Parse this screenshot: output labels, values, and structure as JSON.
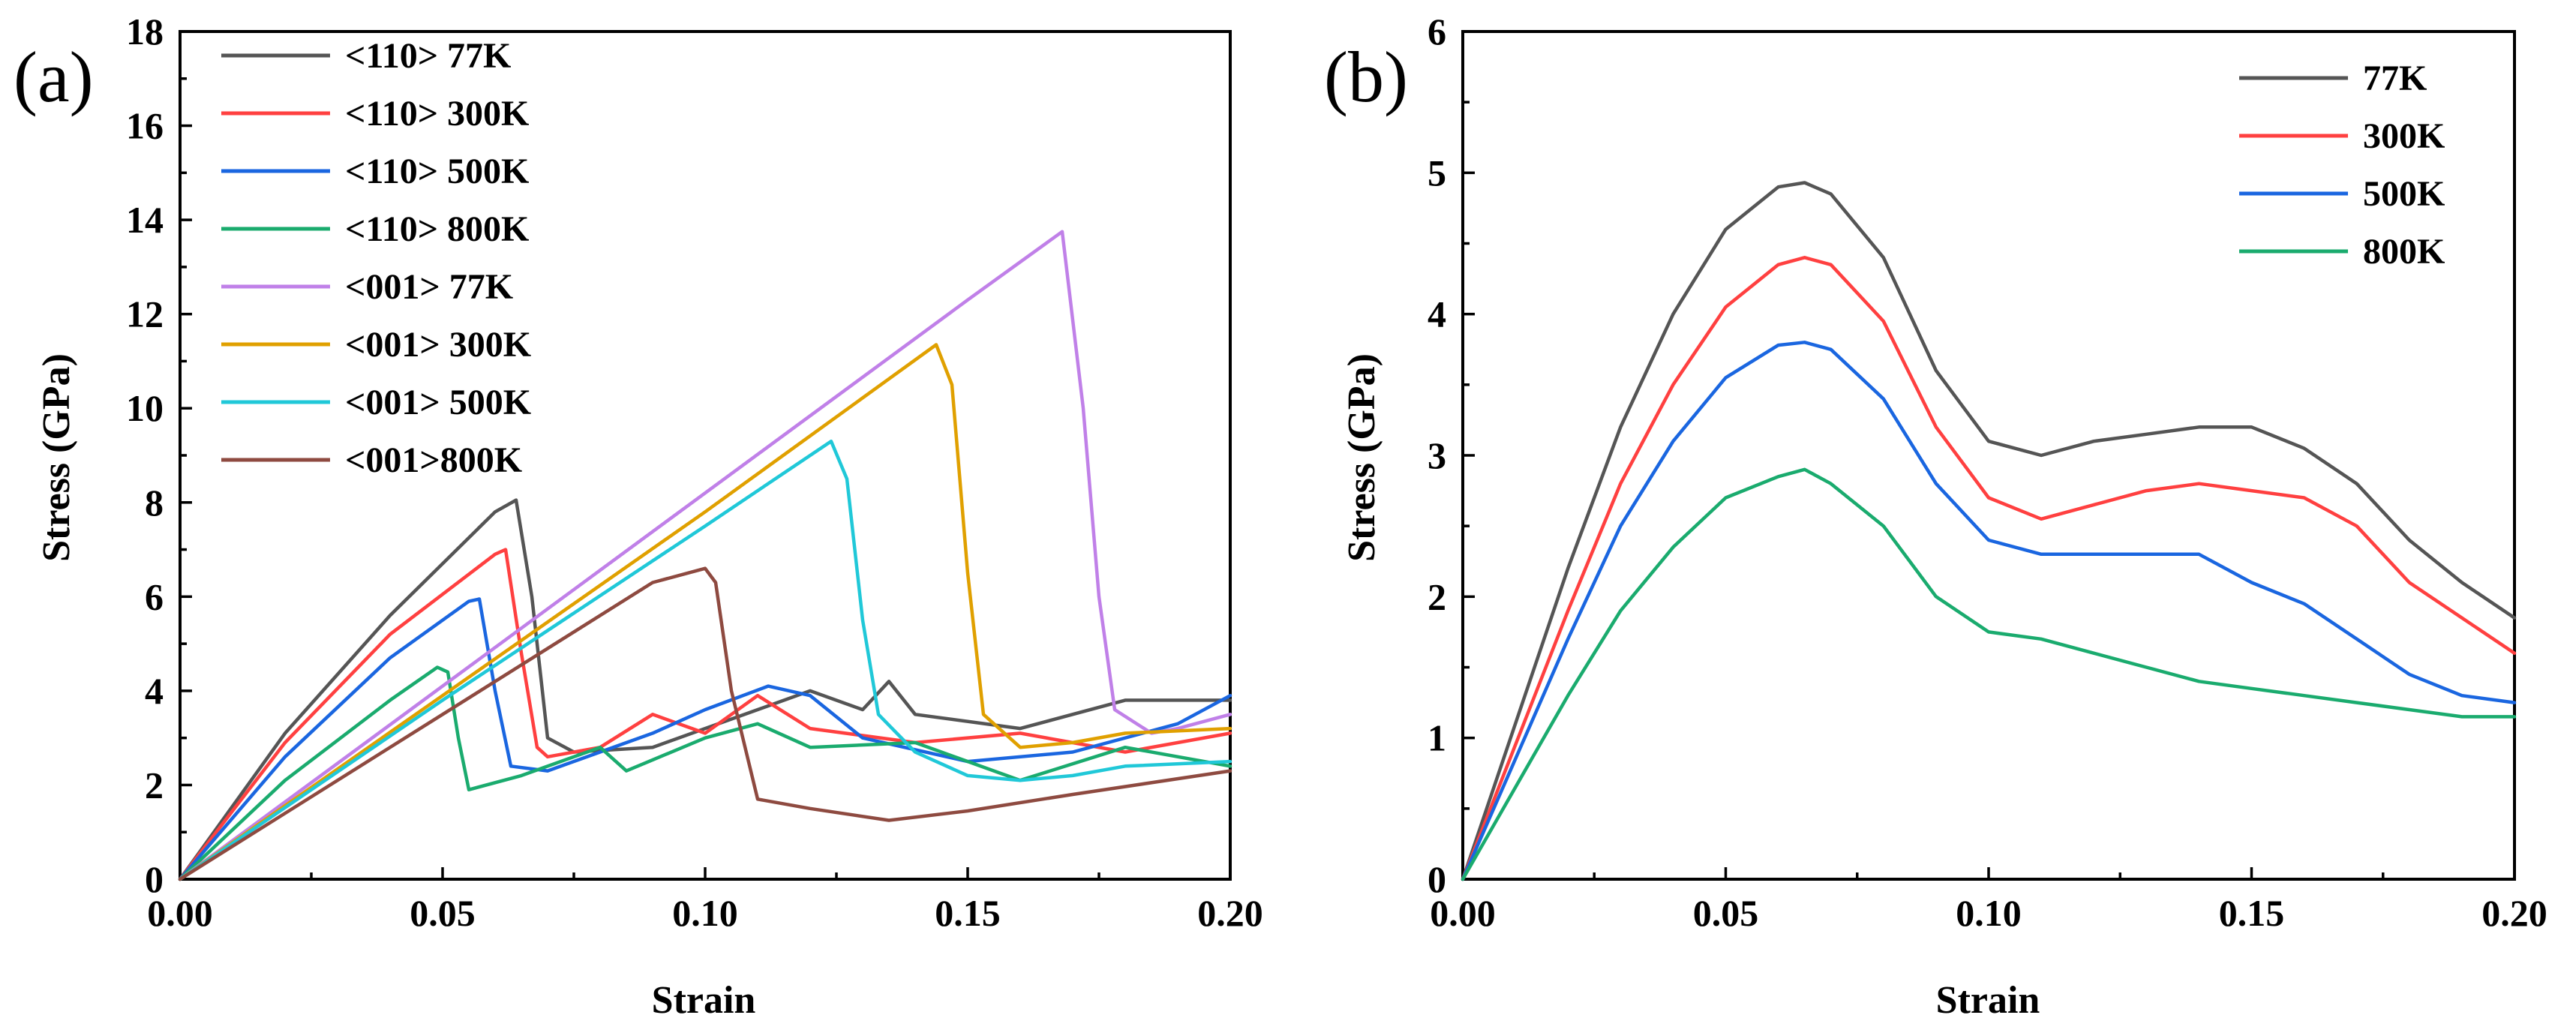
{
  "chart_data": [
    {
      "panel_label": "(a)",
      "type": "line",
      "xlabel": "Strain",
      "ylabel": "Stress (GPa)",
      "xlim": [
        0,
        0.2
      ],
      "ylim": [
        0,
        18
      ],
      "xticks": [
        "0.00",
        "0.05",
        "0.10",
        "0.15",
        "0.20"
      ],
      "yticks": [
        "0",
        "2",
        "4",
        "6",
        "8",
        "10",
        "12",
        "14",
        "16",
        "18"
      ],
      "legend_position": "top-left",
      "series": [
        {
          "name": "<110> 77K",
          "color": "#555555",
          "x": [
            0,
            0.02,
            0.04,
            0.06,
            0.064,
            0.067,
            0.07,
            0.075,
            0.09,
            0.11,
            0.12,
            0.13,
            0.135,
            0.14,
            0.16,
            0.18,
            0.2
          ],
          "y": [
            0,
            3.1,
            5.6,
            7.8,
            8.05,
            6,
            3,
            2.7,
            2.8,
            3.6,
            4.0,
            3.6,
            4.2,
            3.5,
            3.2,
            3.8,
            3.8
          ]
        },
        {
          "name": "<110> 300K",
          "color": "#ff4040",
          "x": [
            0,
            0.02,
            0.04,
            0.06,
            0.062,
            0.065,
            0.068,
            0.07,
            0.08,
            0.09,
            0.1,
            0.11,
            0.12,
            0.14,
            0.16,
            0.18,
            0.2
          ],
          "y": [
            0,
            2.9,
            5.2,
            6.9,
            7.0,
            4.8,
            2.8,
            2.6,
            2.8,
            3.5,
            3.1,
            3.9,
            3.2,
            2.9,
            3.1,
            2.7,
            3.1
          ]
        },
        {
          "name": "<110> 500K",
          "color": "#1a66e0",
          "x": [
            0,
            0.02,
            0.04,
            0.055,
            0.057,
            0.06,
            0.063,
            0.07,
            0.09,
            0.1,
            0.112,
            0.12,
            0.13,
            0.15,
            0.17,
            0.19,
            0.2
          ],
          "y": [
            0,
            2.6,
            4.7,
            5.9,
            5.95,
            4.0,
            2.4,
            2.3,
            3.1,
            3.6,
            4.1,
            3.9,
            3.0,
            2.5,
            2.7,
            3.3,
            3.9
          ]
        },
        {
          "name": "<110> 800K",
          "color": "#1aab6e",
          "x": [
            0,
            0.02,
            0.04,
            0.049,
            0.051,
            0.053,
            0.055,
            0.065,
            0.08,
            0.085,
            0.1,
            0.11,
            0.12,
            0.14,
            0.16,
            0.18,
            0.2
          ],
          "y": [
            0,
            2.1,
            3.8,
            4.5,
            4.4,
            3.0,
            1.9,
            2.2,
            2.8,
            2.3,
            3.0,
            3.3,
            2.8,
            2.9,
            2.1,
            2.8,
            2.4
          ]
        },
        {
          "name": "<001> 77K",
          "color": "#c080e8",
          "x": [
            0,
            0.05,
            0.1,
            0.15,
            0.168,
            0.172,
            0.175,
            0.178,
            0.185,
            0.19,
            0.2
          ],
          "y": [
            0,
            4.1,
            8.2,
            12.3,
            13.75,
            10,
            6,
            3.6,
            3.1,
            3.2,
            3.5
          ]
        },
        {
          "name": "<001> 300K",
          "color": "#e0a000",
          "x": [
            0,
            0.05,
            0.1,
            0.144,
            0.147,
            0.15,
            0.153,
            0.16,
            0.17,
            0.18,
            0.2
          ],
          "y": [
            0,
            3.9,
            7.8,
            11.35,
            10.5,
            6.5,
            3.5,
            2.8,
            2.9,
            3.1,
            3.2
          ]
        },
        {
          "name": "<001> 500K",
          "color": "#20c8d8",
          "x": [
            0,
            0.05,
            0.1,
            0.124,
            0.127,
            0.13,
            0.133,
            0.14,
            0.15,
            0.16,
            0.17,
            0.18,
            0.2
          ],
          "y": [
            0,
            3.8,
            7.5,
            9.3,
            8.5,
            5.5,
            3.5,
            2.7,
            2.2,
            2.1,
            2.2,
            2.4,
            2.5
          ]
        },
        {
          "name": "<001>800K",
          "color": "#8e4a40",
          "x": [
            0,
            0.05,
            0.09,
            0.1,
            0.102,
            0.105,
            0.11,
            0.12,
            0.135,
            0.15,
            0.17,
            0.2
          ],
          "y": [
            0,
            3.5,
            6.3,
            6.6,
            6.3,
            4.0,
            1.7,
            1.5,
            1.25,
            1.45,
            1.8,
            2.3
          ]
        }
      ]
    },
    {
      "panel_label": "(b)",
      "type": "line",
      "xlabel": "Strain",
      "ylabel": "Stress (GPa)",
      "xlim": [
        0,
        0.2
      ],
      "ylim": [
        0,
        6
      ],
      "xticks": [
        "0.00",
        "0.05",
        "0.10",
        "0.15",
        "0.20"
      ],
      "yticks": [
        "0",
        "1",
        "2",
        "3",
        "4",
        "5",
        "6"
      ],
      "legend_position": "top-right",
      "series": [
        {
          "name": "77K",
          "color": "#555555",
          "x": [
            0,
            0.01,
            0.02,
            0.03,
            0.04,
            0.05,
            0.06,
            0.065,
            0.07,
            0.08,
            0.09,
            0.1,
            0.11,
            0.12,
            0.13,
            0.14,
            0.15,
            0.16,
            0.17,
            0.18,
            0.19,
            0.2
          ],
          "y": [
            0,
            1.1,
            2.2,
            3.2,
            4.0,
            4.6,
            4.9,
            4.93,
            4.85,
            4.4,
            3.6,
            3.1,
            3.0,
            3.1,
            3.15,
            3.2,
            3.2,
            3.05,
            2.8,
            2.4,
            2.1,
            1.85
          ]
        },
        {
          "name": "300K",
          "color": "#ff4040",
          "x": [
            0,
            0.01,
            0.02,
            0.03,
            0.04,
            0.05,
            0.06,
            0.065,
            0.07,
            0.08,
            0.09,
            0.1,
            0.11,
            0.12,
            0.13,
            0.14,
            0.15,
            0.16,
            0.17,
            0.18,
            0.19,
            0.2
          ],
          "y": [
            0,
            0.95,
            1.9,
            2.8,
            3.5,
            4.05,
            4.35,
            4.4,
            4.35,
            3.95,
            3.2,
            2.7,
            2.55,
            2.65,
            2.75,
            2.8,
            2.75,
            2.7,
            2.5,
            2.1,
            1.85,
            1.6
          ]
        },
        {
          "name": "500K",
          "color": "#1a66e0",
          "x": [
            0,
            0.01,
            0.02,
            0.03,
            0.04,
            0.05,
            0.06,
            0.065,
            0.07,
            0.08,
            0.09,
            0.1,
            0.11,
            0.12,
            0.13,
            0.14,
            0.15,
            0.16,
            0.17,
            0.18,
            0.19,
            0.2
          ],
          "y": [
            0,
            0.85,
            1.7,
            2.5,
            3.1,
            3.55,
            3.78,
            3.8,
            3.75,
            3.4,
            2.8,
            2.4,
            2.3,
            2.3,
            2.3,
            2.3,
            2.1,
            1.95,
            1.7,
            1.45,
            1.3,
            1.25
          ]
        },
        {
          "name": "800K",
          "color": "#1aab6e",
          "x": [
            0,
            0.01,
            0.02,
            0.03,
            0.04,
            0.05,
            0.06,
            0.065,
            0.07,
            0.08,
            0.09,
            0.1,
            0.11,
            0.12,
            0.13,
            0.14,
            0.15,
            0.16,
            0.17,
            0.18,
            0.19,
            0.2
          ],
          "y": [
            0,
            0.65,
            1.3,
            1.9,
            2.35,
            2.7,
            2.85,
            2.9,
            2.8,
            2.5,
            2.0,
            1.75,
            1.7,
            1.6,
            1.5,
            1.4,
            1.35,
            1.3,
            1.25,
            1.2,
            1.15,
            1.15
          ]
        }
      ]
    }
  ]
}
